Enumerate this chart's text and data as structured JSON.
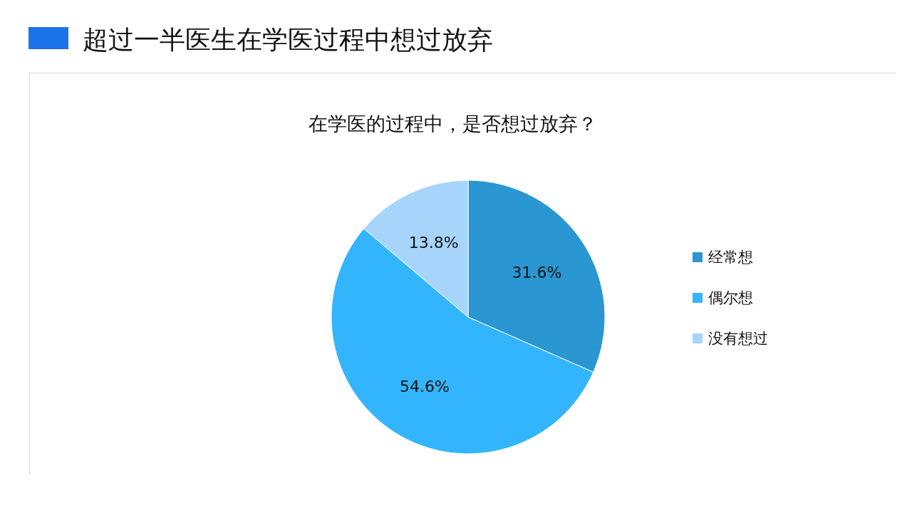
{
  "chart_data": {
    "type": "pie",
    "title": "超过一半医生在学医过程中想过放弃",
    "subtitle": "在学医的过程中，是否想过放弃？",
    "categories": [
      "经常想",
      "偶尔想",
      "没有想过"
    ],
    "values": [
      31.6,
      54.6,
      13.8
    ],
    "value_labels": [
      "31.6%",
      "54.6%",
      "13.8%"
    ],
    "colors": [
      "#2a96d2",
      "#33b5fd",
      "#a6d4fb"
    ],
    "legend": "right"
  }
}
